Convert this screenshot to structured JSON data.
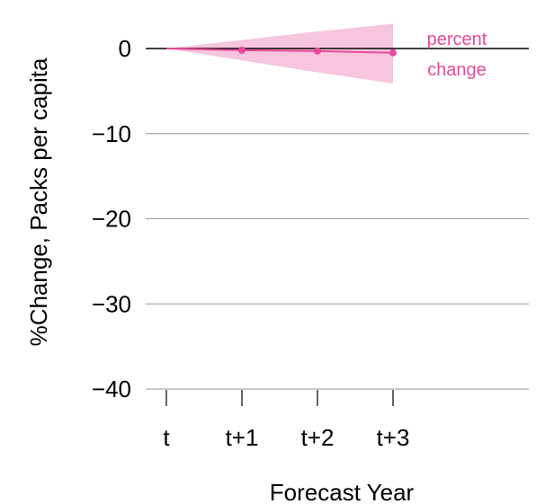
{
  "chart_data": {
    "type": "line",
    "xlabel": "Forecast Year",
    "ylabel": "%Change, Packs per capita",
    "categories": [
      "t",
      "t+1",
      "t+2",
      "t+3"
    ],
    "y_ticks": [
      0,
      -10,
      -20,
      -30,
      -40
    ],
    "ylim": [
      -40,
      2
    ],
    "grid": true,
    "series": [
      {
        "name": "percent change",
        "name_lines": [
          "percent",
          "change"
        ],
        "values": [
          0,
          -0.2,
          -0.3,
          -0.5
        ],
        "band_upper": [
          0,
          1.0,
          2.0,
          2.9
        ],
        "band_lower": [
          0,
          -1.4,
          -2.8,
          -4.1
        ],
        "color": "#e8499a",
        "band_color": "#f7c5dd"
      }
    ],
    "zero_line_color": "#000000",
    "grid_color": "#9a9a9a"
  }
}
